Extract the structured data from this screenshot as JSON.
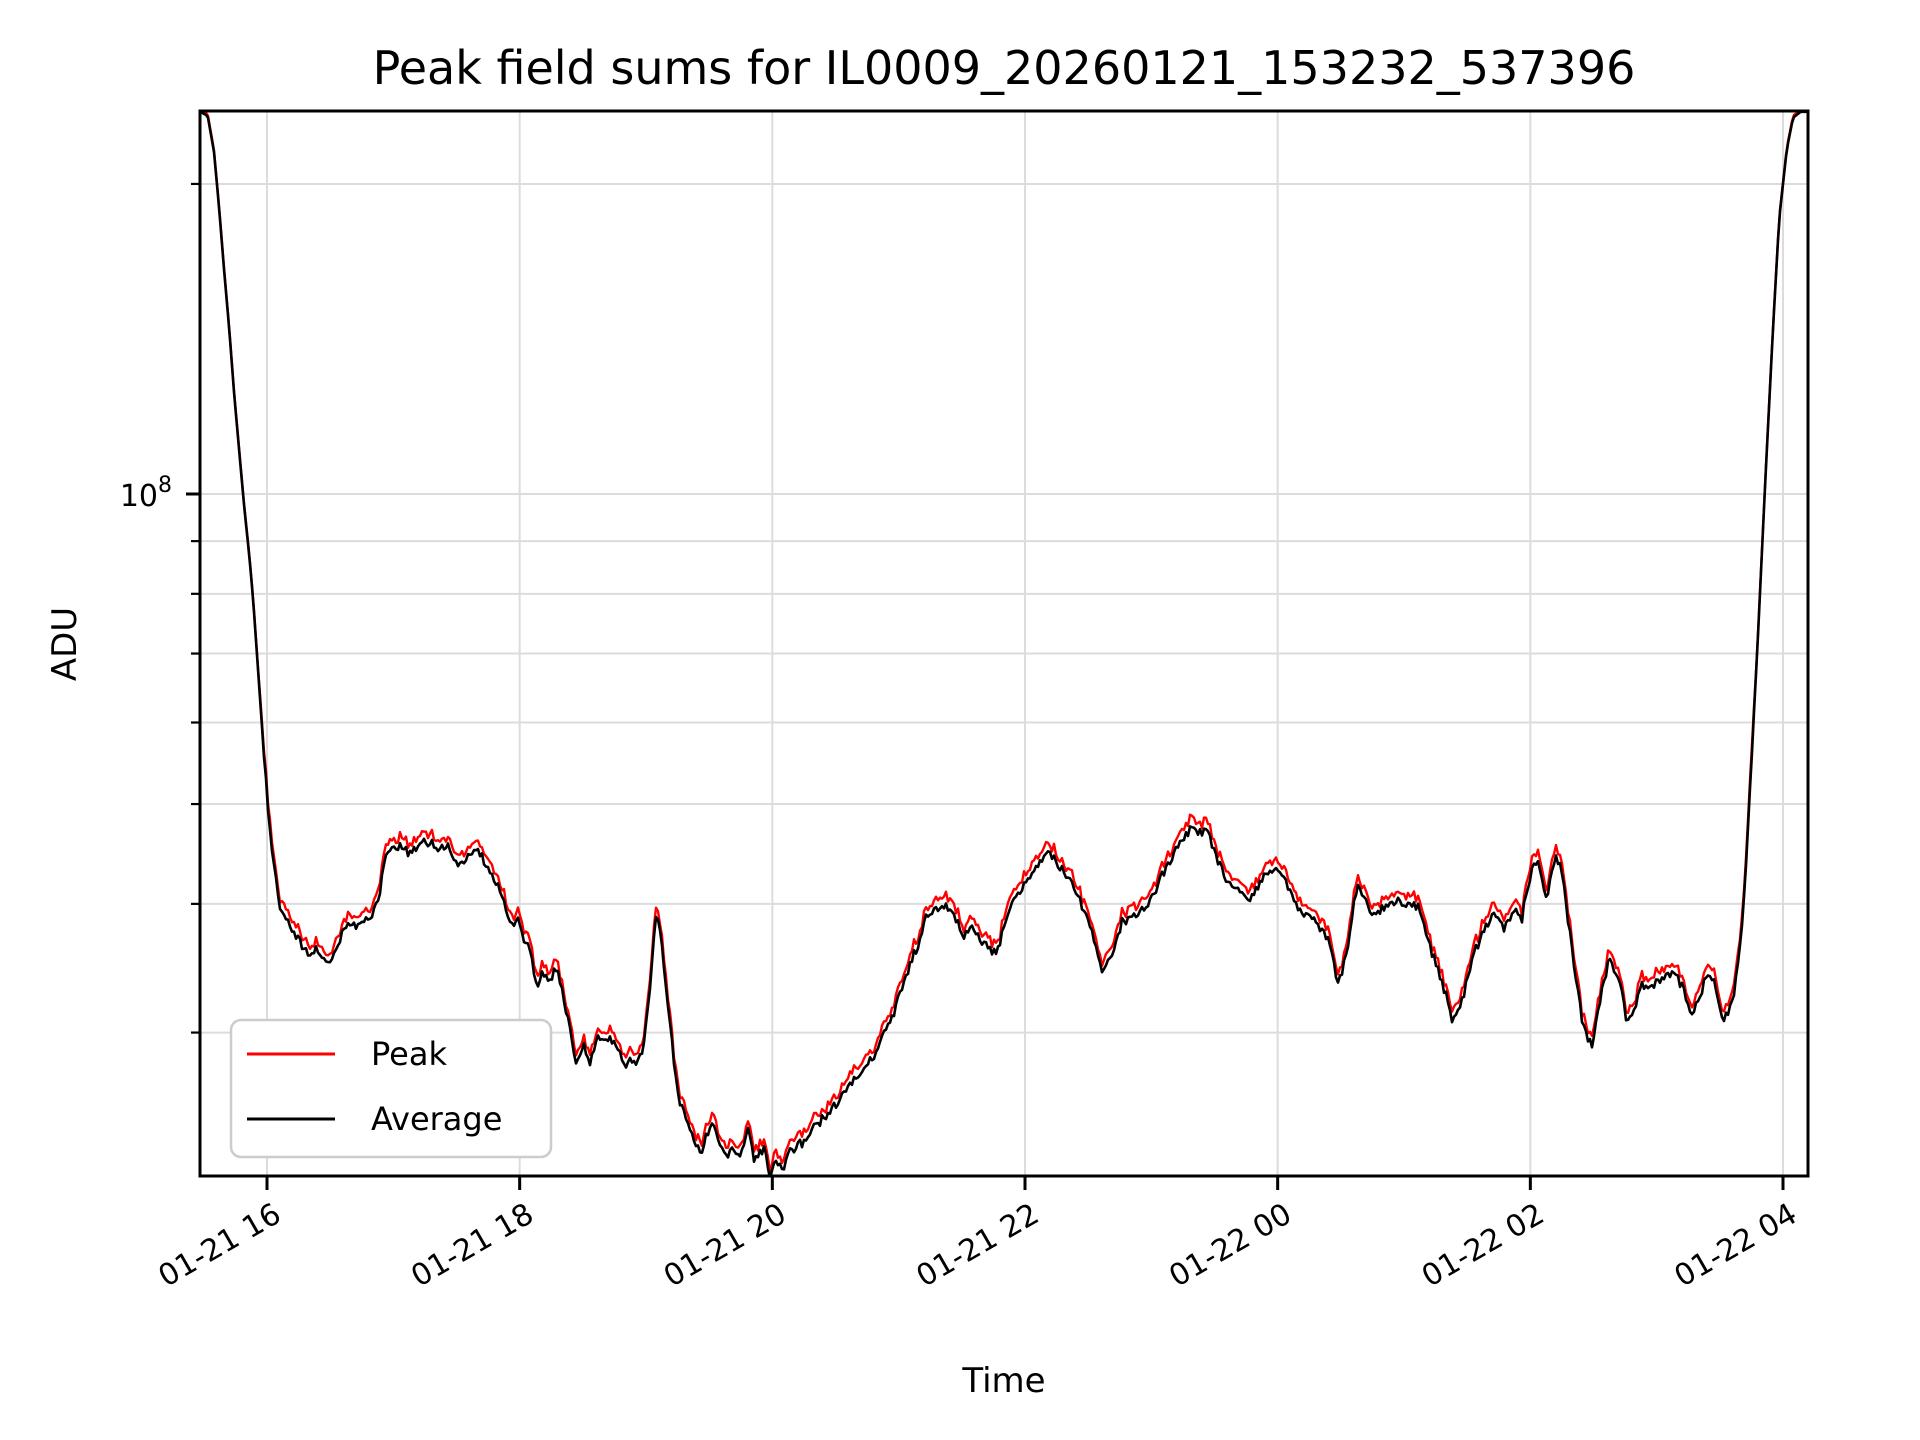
{
  "page": {
    "background": "#ffffff"
  },
  "colors": {
    "peak": "#ff0000",
    "average": "#000000",
    "grid": "#dcdcdc",
    "frame": "#000000",
    "legend_border": "#cccccc",
    "background": "#ffffff"
  },
  "chart_data": {
    "type": "line",
    "title": "Peak field sums for IL0009_20260121_153232_537396",
    "xlabel": "Time",
    "ylabel": "ADU",
    "yscale": "log",
    "xscale": "time",
    "x_unit_note": "hours since 01-21 00:00",
    "xlim": [
      15.47,
      28.2
    ],
    "ylim": [
      21700000,
      235000000
    ],
    "grid": true,
    "x_ticks": {
      "positions": [
        16,
        18,
        20,
        22,
        24,
        26,
        28
      ],
      "labels": [
        "01-21 16",
        "01-21 18",
        "01-21 20",
        "01-21 22",
        "01-22 00",
        "01-22 02",
        "01-22 04"
      ]
    },
    "y_major_tick": {
      "value": 100000000,
      "label_base": "10",
      "label_exp": "8"
    },
    "y_minor_ticks": [
      200000000,
      90000000,
      80000000,
      70000000,
      60000000,
      50000000,
      40000000,
      30000000
    ],
    "legend": {
      "location": "lower left",
      "entries": [
        {
          "label": "Peak",
          "color": "#ff0000"
        },
        {
          "label": "Average",
          "color": "#000000"
        }
      ]
    },
    "series": [
      {
        "name": "Peak",
        "color": "#ff0000",
        "ratio_vs_average": 1.02,
        "note": "red curve sits ~2% above Average, visible as a thin fringe"
      },
      {
        "name": "Average",
        "color": "#000000",
        "points": [
          [
            15.47,
            235000000.0
          ],
          [
            15.53,
            233000000.0
          ],
          [
            15.58,
            215000000.0
          ],
          [
            15.62,
            190000000.0
          ],
          [
            15.66,
            165000000.0
          ],
          [
            15.7,
            145000000.0
          ],
          [
            15.74,
            125000000.0
          ],
          [
            15.78,
            110000000.0
          ],
          [
            15.82,
            97000000.0
          ],
          [
            15.86,
            87000000.0
          ],
          [
            15.89,
            79000000.0
          ],
          [
            15.92,
            70000000.0
          ],
          [
            15.95,
            62000000.0
          ],
          [
            15.98,
            55000000.0
          ],
          [
            16.01,
            49000000.0
          ],
          [
            16.04,
            45000000.0
          ],
          [
            16.07,
            42500000.0
          ],
          [
            16.1,
            39500000.0
          ],
          [
            16.13,
            39000000.0
          ],
          [
            16.18,
            38200000.0
          ],
          [
            16.24,
            37200000.0
          ],
          [
            16.28,
            36400000.0
          ],
          [
            16.34,
            35600000.0
          ],
          [
            16.4,
            36200000.0
          ],
          [
            16.44,
            35600000.0
          ],
          [
            16.48,
            35200000.0
          ],
          [
            16.54,
            35800000.0
          ],
          [
            16.6,
            37700000.0
          ],
          [
            16.67,
            38400000.0
          ],
          [
            16.72,
            38000000.0
          ],
          [
            16.78,
            38800000.0
          ],
          [
            16.84,
            39200000.0
          ],
          [
            16.89,
            41000000.0
          ],
          [
            16.95,
            45000000.0
          ],
          [
            17.0,
            45200000.0
          ],
          [
            17.05,
            45500000.0
          ],
          [
            17.12,
            44800000.0
          ],
          [
            17.17,
            45300000.0
          ],
          [
            17.23,
            45800000.0
          ],
          [
            17.29,
            46000000.0
          ],
          [
            17.37,
            45000000.0
          ],
          [
            17.43,
            45800000.0
          ],
          [
            17.51,
            43400000.0
          ],
          [
            17.58,
            44500000.0
          ],
          [
            17.62,
            45000000.0
          ],
          [
            17.66,
            45200000.0
          ],
          [
            17.72,
            44000000.0
          ],
          [
            17.77,
            43000000.0
          ],
          [
            17.82,
            42000000.0
          ],
          [
            17.88,
            40000000.0
          ],
          [
            17.94,
            38300000.0
          ],
          [
            17.99,
            38600000.0
          ],
          [
            18.03,
            37000000.0
          ],
          [
            18.08,
            36000000.0
          ],
          [
            18.14,
            33000000.0
          ],
          [
            18.18,
            34200000.0
          ],
          [
            18.24,
            33800000.0
          ],
          [
            18.3,
            34700000.0
          ],
          [
            18.36,
            32000000.0
          ],
          [
            18.4,
            30000000.0
          ],
          [
            18.45,
            27800000.0
          ],
          [
            18.51,
            29200000.0
          ],
          [
            18.56,
            28000000.0
          ],
          [
            18.61,
            29800000.0
          ],
          [
            18.67,
            29400000.0
          ],
          [
            18.72,
            29600000.0
          ],
          [
            18.77,
            29000000.0
          ],
          [
            18.83,
            27800000.0
          ],
          [
            18.87,
            28500000.0
          ],
          [
            18.93,
            28000000.0
          ],
          [
            18.98,
            29000000.0
          ],
          [
            19.03,
            33000000.0
          ],
          [
            19.07,
            38500000.0
          ],
          [
            19.09,
            39200000.0
          ],
          [
            19.11,
            38000000.0
          ],
          [
            19.15,
            34000000.0
          ],
          [
            19.19,
            30500000.0
          ],
          [
            19.25,
            26200000.0
          ],
          [
            19.31,
            24800000.0
          ],
          [
            19.37,
            23800000.0
          ],
          [
            19.44,
            23000000.0
          ],
          [
            19.51,
            24500000.0
          ],
          [
            19.56,
            24000000.0
          ],
          [
            19.63,
            22600000.0
          ],
          [
            19.69,
            23300000.0
          ],
          [
            19.74,
            22800000.0
          ],
          [
            19.81,
            24200000.0
          ],
          [
            19.86,
            22500000.0
          ],
          [
            19.93,
            23200000.0
          ],
          [
            19.98,
            21800000.0
          ],
          [
            20.03,
            22400000.0
          ],
          [
            20.09,
            22000000.0
          ],
          [
            20.14,
            23000000.0
          ],
          [
            20.2,
            23300000.0
          ],
          [
            20.27,
            23600000.0
          ],
          [
            20.32,
            24200000.0
          ],
          [
            20.38,
            24600000.0
          ],
          [
            20.44,
            25000000.0
          ],
          [
            20.5,
            25500000.0
          ],
          [
            20.56,
            26200000.0
          ],
          [
            20.62,
            26800000.0
          ],
          [
            20.69,
            27200000.0
          ],
          [
            20.76,
            28000000.0
          ],
          [
            20.83,
            28800000.0
          ],
          [
            20.89,
            30000000.0
          ],
          [
            20.96,
            31300000.0
          ],
          [
            21.02,
            33000000.0
          ],
          [
            21.09,
            35000000.0
          ],
          [
            21.15,
            36400000.0
          ],
          [
            21.21,
            38700000.0
          ],
          [
            21.31,
            39600000.0
          ],
          [
            21.37,
            39800000.0
          ],
          [
            21.43,
            39400000.0
          ],
          [
            21.51,
            37200000.0
          ],
          [
            21.57,
            38000000.0
          ],
          [
            21.65,
            36900000.0
          ],
          [
            21.77,
            35800000.0
          ],
          [
            21.83,
            37700000.0
          ],
          [
            21.9,
            40000000.0
          ],
          [
            21.98,
            41500000.0
          ],
          [
            22.06,
            43100000.0
          ],
          [
            22.18,
            45000000.0
          ],
          [
            22.28,
            43400000.0
          ],
          [
            22.36,
            42300000.0
          ],
          [
            22.41,
            41200000.0
          ],
          [
            22.49,
            38600000.0
          ],
          [
            22.54,
            37200000.0
          ],
          [
            22.61,
            34500000.0
          ],
          [
            22.7,
            36200000.0
          ],
          [
            22.77,
            38500000.0
          ],
          [
            22.83,
            38600000.0
          ],
          [
            22.93,
            39500000.0
          ],
          [
            23.01,
            40500000.0
          ],
          [
            23.12,
            43600000.0
          ],
          [
            23.19,
            45000000.0
          ],
          [
            23.25,
            46000000.0
          ],
          [
            23.31,
            47400000.0
          ],
          [
            23.38,
            47000000.0
          ],
          [
            23.44,
            47200000.0
          ],
          [
            23.5,
            45000000.0
          ],
          [
            23.57,
            42700000.0
          ],
          [
            23.64,
            41500000.0
          ],
          [
            23.7,
            41000000.0
          ],
          [
            23.78,
            40100000.0
          ],
          [
            23.84,
            41500000.0
          ],
          [
            23.91,
            42800000.0
          ],
          [
            23.98,
            43600000.0
          ],
          [
            24.04,
            42500000.0
          ],
          [
            24.1,
            41300000.0
          ],
          [
            24.15,
            39800000.0
          ],
          [
            24.22,
            39000000.0
          ],
          [
            24.28,
            38500000.0
          ],
          [
            24.34,
            37800000.0
          ],
          [
            24.42,
            36600000.0
          ],
          [
            24.48,
            33300000.0
          ],
          [
            24.55,
            36000000.0
          ],
          [
            24.63,
            41900000.0
          ],
          [
            24.69,
            40200000.0
          ],
          [
            24.76,
            39100000.0
          ],
          [
            24.83,
            39600000.0
          ],
          [
            24.89,
            40000000.0
          ],
          [
            24.95,
            40400000.0
          ],
          [
            25.01,
            39800000.0
          ],
          [
            25.07,
            40000000.0
          ],
          [
            25.13,
            39500000.0
          ],
          [
            25.21,
            36100000.0
          ],
          [
            25.29,
            34000000.0
          ],
          [
            25.38,
            31000000.0
          ],
          [
            25.45,
            31800000.0
          ],
          [
            25.53,
            35100000.0
          ],
          [
            25.61,
            37200000.0
          ],
          [
            25.68,
            38600000.0
          ],
          [
            25.74,
            39000000.0
          ],
          [
            25.79,
            37700000.0
          ],
          [
            25.84,
            38800000.0
          ],
          [
            25.88,
            39300000.0
          ],
          [
            25.93,
            38400000.0
          ],
          [
            25.97,
            41100000.0
          ],
          [
            26.03,
            43800000.0
          ],
          [
            26.07,
            43500000.0
          ],
          [
            26.13,
            40100000.0
          ],
          [
            26.19,
            44300000.0
          ],
          [
            26.24,
            44000000.0
          ],
          [
            26.29,
            39200000.0
          ],
          [
            26.33,
            36100000.0
          ],
          [
            26.37,
            33200000.0
          ],
          [
            26.41,
            30900000.0
          ],
          [
            26.45,
            29700000.0
          ],
          [
            26.49,
            29000000.0
          ],
          [
            26.55,
            32200000.0
          ],
          [
            26.63,
            35700000.0
          ],
          [
            26.72,
            33000000.0
          ],
          [
            26.77,
            30500000.0
          ],
          [
            26.84,
            32000000.0
          ],
          [
            26.89,
            33600000.0
          ],
          [
            26.93,
            32800000.0
          ],
          [
            27.0,
            33500000.0
          ],
          [
            27.07,
            34000000.0
          ],
          [
            27.14,
            34500000.0
          ],
          [
            27.21,
            33000000.0
          ],
          [
            27.28,
            31200000.0
          ],
          [
            27.35,
            32800000.0
          ],
          [
            27.4,
            34300000.0
          ],
          [
            27.46,
            33500000.0
          ],
          [
            27.52,
            30800000.0
          ],
          [
            27.57,
            31600000.0
          ],
          [
            27.62,
            33000000.0
          ],
          [
            27.69,
            40000000.0
          ],
          [
            27.74,
            52000000.0
          ],
          [
            27.8,
            72000000.0
          ],
          [
            27.86,
            103000000.0
          ],
          [
            27.92,
            144000000.0
          ],
          [
            27.97,
            185000000.0
          ],
          [
            28.03,
            216000000.0
          ],
          [
            28.08,
            232000000.0
          ],
          [
            28.14,
            235000000.0
          ],
          [
            28.2,
            235000000.0
          ]
        ]
      }
    ]
  }
}
